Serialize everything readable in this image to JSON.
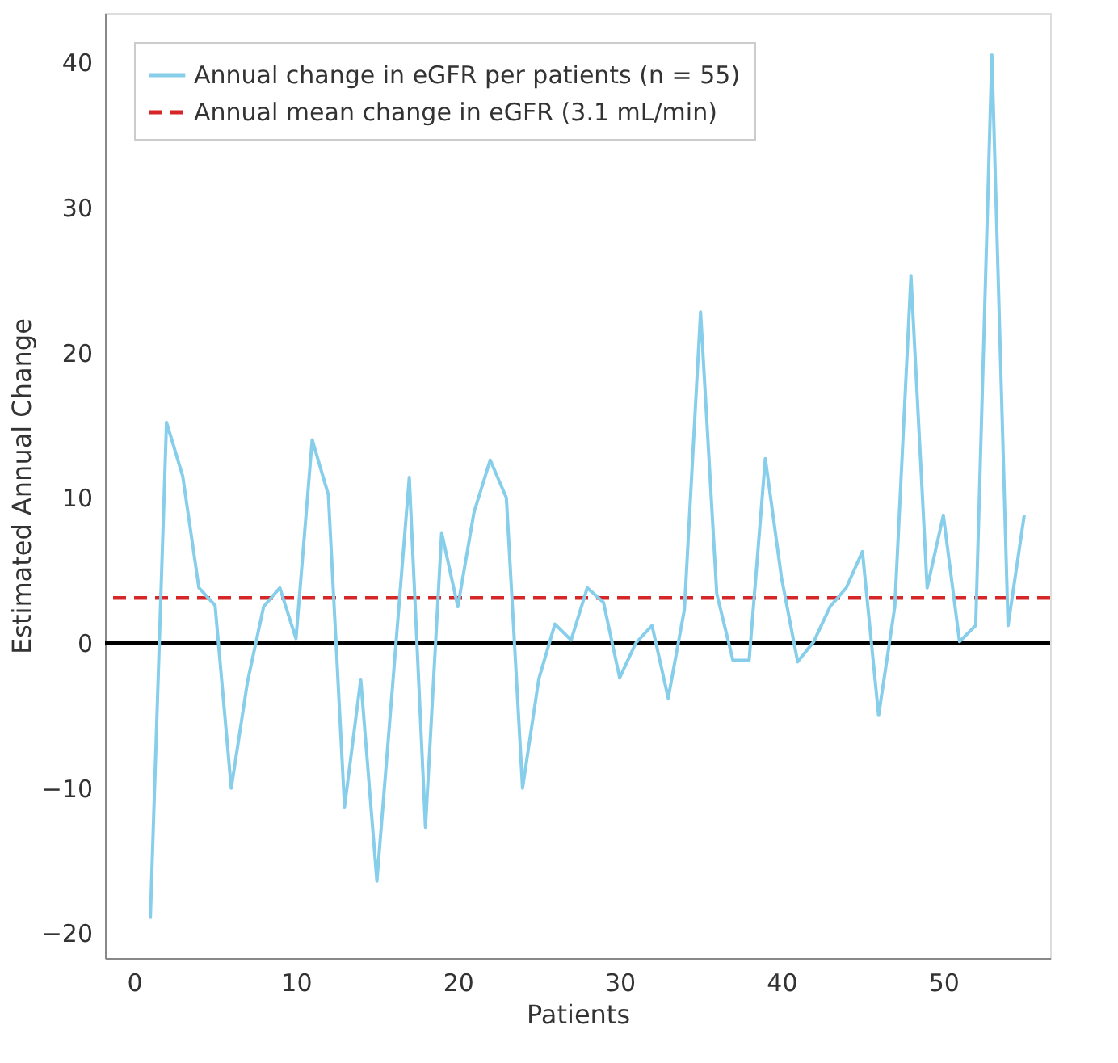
{
  "chart_data": {
    "type": "line",
    "xlabel": "Patients",
    "ylabel": "Estimated Annual Change",
    "x": [
      1,
      2,
      3,
      4,
      5,
      6,
      7,
      8,
      9,
      10,
      11,
      12,
      13,
      14,
      15,
      16,
      17,
      18,
      19,
      20,
      21,
      22,
      23,
      24,
      25,
      26,
      27,
      28,
      29,
      30,
      31,
      32,
      33,
      34,
      35,
      36,
      37,
      38,
      39,
      40,
      41,
      42,
      43,
      44,
      45,
      46,
      47,
      48,
      49,
      50,
      51,
      52,
      53,
      54,
      55
    ],
    "series": [
      {
        "name": "Annual change in eGFR per patients (n = 55)",
        "color": "#87ceeb",
        "values": [
          -19,
          15.2,
          11.5,
          3.8,
          2.6,
          -10,
          -2.7,
          2.5,
          3.8,
          0.3,
          14,
          10.2,
          -11.3,
          -2.5,
          -16.4,
          -2.5,
          11.4,
          -12.7,
          7.6,
          2.5,
          9,
          12.6,
          10,
          -10,
          -2.5,
          1.3,
          0.2,
          3.8,
          2.8,
          -2.4,
          0,
          1.2,
          -3.8,
          2.3,
          22.8,
          3.4,
          -1.2,
          -1.2,
          12.7,
          4.5,
          -1.3,
          0.1,
          2.5,
          3.8,
          6.3,
          -5,
          2.5,
          25.3,
          3.8,
          8.8,
          0.1,
          1.2,
          40.5,
          1.2,
          8.8
        ]
      }
    ],
    "ref_lines": [
      {
        "axis": "y",
        "value": 3.1,
        "label": "Annual mean change in eGFR (3.1 mL/min)",
        "color": "#d62728",
        "line_style": "dashed"
      },
      {
        "axis": "y",
        "value": 0,
        "color": "#000000",
        "line_style": "solid"
      }
    ],
    "xlim": [
      -1.8,
      56.6
    ],
    "ylim": [
      -21.7,
      43.4
    ],
    "xticks": [
      0,
      10,
      20,
      30,
      40,
      50
    ],
    "yticks": [
      -20,
      -10,
      0,
      10,
      20,
      30,
      40
    ],
    "grid": false,
    "legend": "top left",
    "marker": "none",
    "line_style": "solid"
  }
}
